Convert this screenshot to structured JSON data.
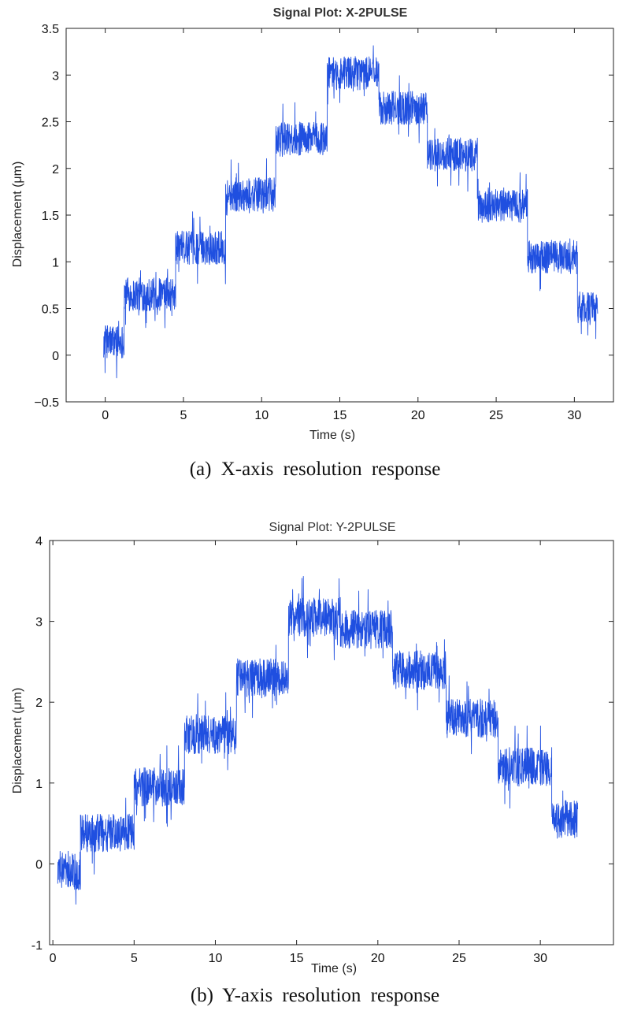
{
  "chart_data": [
    {
      "type": "line",
      "title": "Signal Plot: X-2PULSE",
      "xlabel": "Time (s)",
      "ylabel": "Displacement (μm)",
      "xlim": [
        -2.5,
        32.5
      ],
      "ylim": [
        -0.5,
        3.5
      ],
      "xticks": [
        "0",
        "5",
        "10",
        "15",
        "20",
        "25",
        "30"
      ],
      "yticks": [
        "−0.5",
        "0",
        "0.5",
        "1",
        "1.5",
        "2",
        "2.5",
        "3",
        "3.5"
      ],
      "grid": false,
      "line_color": "#1f4fe0",
      "noise_amplitude": 0.18,
      "caption": "(a) X-axis resolution response",
      "steps": [
        {
          "t_start": -0.1,
          "t_end": 1.2,
          "level": 0.15
        },
        {
          "t_start": 1.2,
          "t_end": 4.5,
          "level": 0.65
        },
        {
          "t_start": 4.5,
          "t_end": 7.7,
          "level": 1.15
        },
        {
          "t_start": 7.7,
          "t_end": 10.9,
          "level": 1.72
        },
        {
          "t_start": 10.9,
          "t_end": 14.2,
          "level": 2.32
        },
        {
          "t_start": 14.2,
          "t_end": 17.5,
          "level": 3.02
        },
        {
          "t_start": 17.5,
          "t_end": 20.6,
          "level": 2.65
        },
        {
          "t_start": 20.6,
          "t_end": 23.8,
          "level": 2.15
        },
        {
          "t_start": 23.8,
          "t_end": 27.0,
          "level": 1.6
        },
        {
          "t_start": 27.0,
          "t_end": 30.2,
          "level": 1.05
        },
        {
          "t_start": 30.2,
          "t_end": 31.5,
          "level": 0.5
        }
      ]
    },
    {
      "type": "line",
      "title": "Signal Plot: Y-2PULSE",
      "xlabel": "Time (s)",
      "ylabel": "Displacement (μm)",
      "xlim": [
        -0.2,
        34.5
      ],
      "ylim": [
        -1,
        4
      ],
      "xticks": [
        "0",
        "5",
        "10",
        "15",
        "20",
        "25",
        "30"
      ],
      "yticks": [
        "-1",
        "0",
        "1",
        "2",
        "3",
        "4"
      ],
      "grid": false,
      "line_color": "#1f4fe0",
      "noise_amplitude": 0.24,
      "caption": "(b) Y-axis resolution response",
      "steps": [
        {
          "t_start": 0.3,
          "t_end": 1.7,
          "level": -0.08
        },
        {
          "t_start": 1.7,
          "t_end": 5.0,
          "level": 0.38
        },
        {
          "t_start": 5.0,
          "t_end": 8.1,
          "level": 0.95
        },
        {
          "t_start": 8.1,
          "t_end": 11.3,
          "level": 1.6
        },
        {
          "t_start": 11.3,
          "t_end": 14.5,
          "level": 2.3
        },
        {
          "t_start": 14.5,
          "t_end": 17.7,
          "level": 3.05
        },
        {
          "t_start": 17.7,
          "t_end": 20.9,
          "level": 2.9
        },
        {
          "t_start": 20.9,
          "t_end": 24.2,
          "level": 2.4
        },
        {
          "t_start": 24.2,
          "t_end": 27.4,
          "level": 1.8
        },
        {
          "t_start": 27.4,
          "t_end": 30.7,
          "level": 1.2
        },
        {
          "t_start": 30.7,
          "t_end": 32.3,
          "level": 0.55
        }
      ]
    }
  ]
}
